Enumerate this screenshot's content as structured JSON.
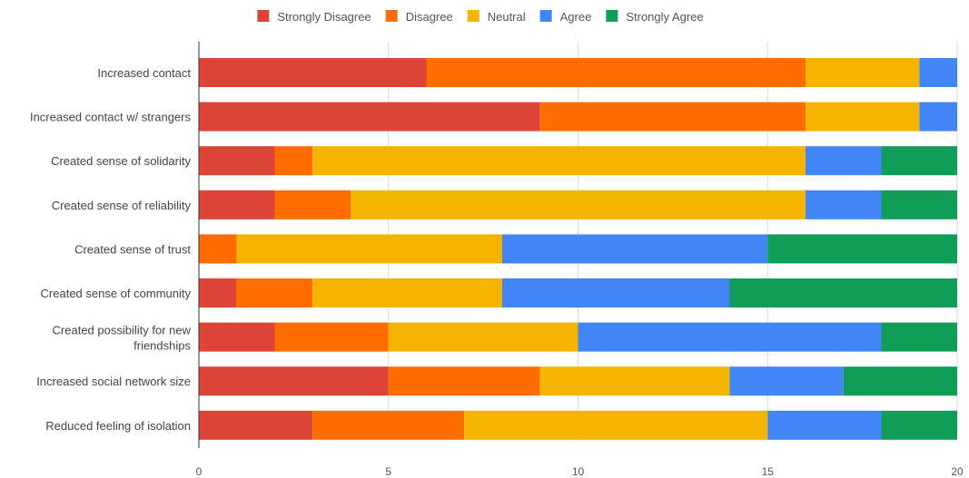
{
  "chart_data": {
    "type": "bar",
    "orientation": "horizontal",
    "stacked": true,
    "legend_position": "top",
    "grid": true,
    "xlim": [
      0,
      20
    ],
    "x_ticks": [
      0,
      5,
      10,
      15,
      20
    ],
    "categories": [
      "Increased contact",
      "Increased contact w/ strangers",
      "Created sense of solidarity",
      "Created sense of reliability",
      "Created sense of trust",
      "Created sense of community",
      "Created possibility for new friendships",
      "Increased social network size",
      "Reduced feeling of isolation"
    ],
    "series": [
      {
        "name": "Strongly Disagree",
        "color": "#db4437",
        "values": [
          6,
          9,
          2,
          2,
          0,
          1,
          2,
          5,
          3
        ]
      },
      {
        "name": "Disagree",
        "color": "#ff6d01",
        "values": [
          10,
          7,
          1,
          2,
          1,
          2,
          3,
          4,
          4
        ]
      },
      {
        "name": "Neutral",
        "color": "#f4b400",
        "values": [
          3,
          3,
          13,
          12,
          7,
          5,
          5,
          5,
          8
        ]
      },
      {
        "name": "Agree",
        "color": "#4285f4",
        "values": [
          1,
          1,
          2,
          2,
          7,
          6,
          8,
          3,
          3
        ]
      },
      {
        "name": "Strongly Agree",
        "color": "#0f9d58",
        "values": [
          0,
          0,
          2,
          2,
          5,
          6,
          2,
          3,
          2
        ]
      }
    ]
  }
}
